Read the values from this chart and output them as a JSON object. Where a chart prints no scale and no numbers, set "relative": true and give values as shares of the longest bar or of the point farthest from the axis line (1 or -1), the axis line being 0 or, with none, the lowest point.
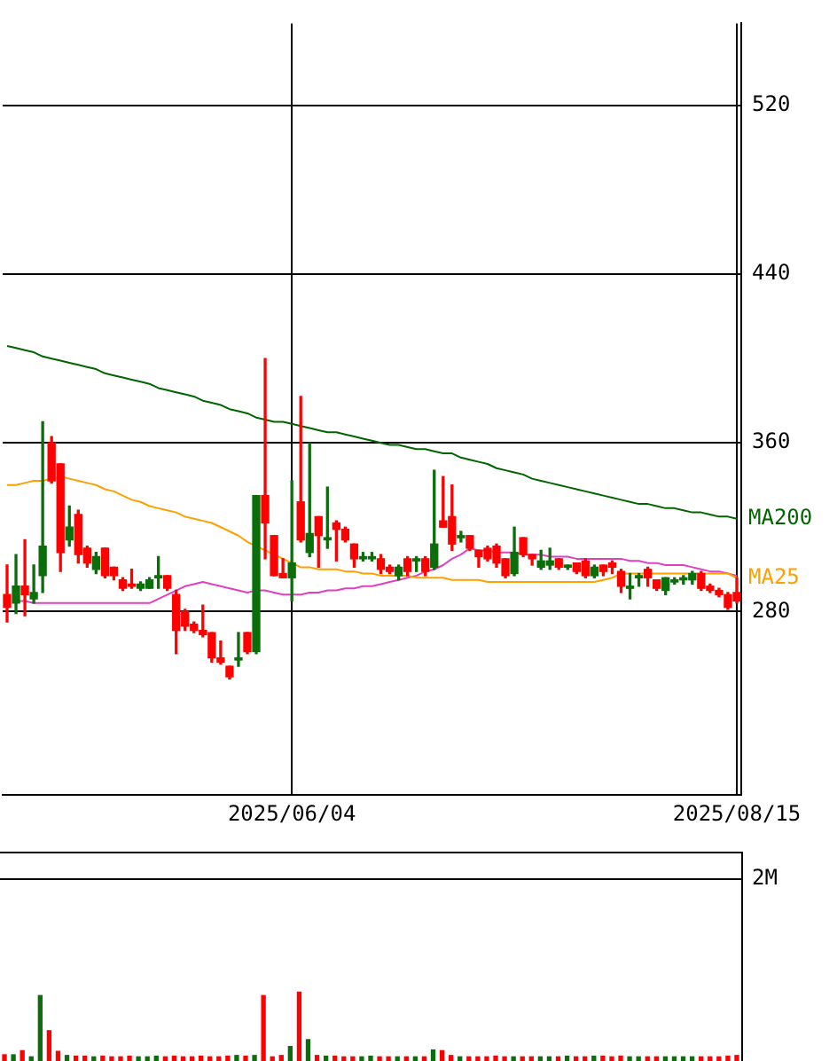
{
  "chart_data": [
    {
      "type": "candlestick",
      "categories": [
        null,
        null,
        null,
        null,
        null,
        null,
        null,
        null,
        null,
        null,
        null,
        null,
        null,
        null,
        null,
        null,
        null,
        null,
        null,
        null,
        null,
        null,
        null,
        null,
        null,
        null,
        null,
        null,
        null,
        null,
        null,
        null,
        "2025/06/04",
        null,
        null,
        null,
        null,
        null,
        null,
        null,
        null,
        null,
        null,
        null,
        null,
        null,
        null,
        null,
        null,
        null,
        null,
        null,
        null,
        null,
        null,
        null,
        null,
        null,
        null,
        null,
        null,
        null,
        null,
        null,
        null,
        null,
        null,
        null,
        null,
        null,
        null,
        null,
        null,
        null,
        null,
        null,
        null,
        null,
        null,
        null,
        null,
        null,
        "2025/08/15"
      ],
      "ohlc": [
        [
          288,
          302,
          275,
          282
        ],
        [
          284,
          307,
          279,
          292
        ],
        [
          292,
          314,
          278,
          288
        ],
        [
          286,
          302,
          284,
          289
        ],
        [
          297,
          370,
          289,
          311
        ],
        [
          360,
          363,
          341,
          342
        ],
        [
          350,
          350,
          299,
          308
        ],
        [
          314,
          330,
          311,
          320
        ],
        [
          326,
          328,
          303,
          307
        ],
        [
          310,
          311,
          301,
          303
        ],
        [
          300,
          308,
          298,
          306
        ],
        [
          310,
          310,
          296,
          297
        ],
        [
          301,
          301,
          295,
          297
        ],
        [
          295,
          296,
          290,
          291
        ],
        [
          293,
          300,
          291,
          292
        ],
        [
          291,
          294,
          290,
          293
        ],
        [
          291,
          296,
          291,
          295
        ],
        [
          296,
          306,
          291,
          297
        ],
        [
          297,
          297,
          290,
          291
        ],
        [
          288,
          290,
          260,
          271
        ],
        [
          280,
          281,
          271,
          273
        ],
        [
          274,
          275,
          270,
          271
        ],
        [
          271,
          283,
          268,
          269
        ],
        [
          270,
          270,
          256,
          258
        ],
        [
          258,
          266,
          255,
          256
        ],
        [
          254,
          254,
          248,
          249
        ],
        [
          257,
          270,
          254,
          258
        ],
        [
          270,
          270,
          260,
          261
        ],
        [
          261,
          335,
          260,
          335
        ],
        [
          335,
          400,
          305,
          322
        ],
        [
          316,
          316,
          297,
          297
        ],
        [
          298,
          305,
          296,
          296
        ],
        [
          296,
          342,
          285,
          303
        ],
        [
          332,
          382,
          313,
          314
        ],
        [
          308,
          360,
          306,
          317
        ],
        [
          325,
          325,
          301,
          316
        ],
        [
          314,
          339,
          310,
          315
        ],
        [
          322,
          323,
          304,
          319
        ],
        [
          319,
          320,
          313,
          314
        ],
        [
          312,
          312,
          301,
          305
        ],
        [
          305,
          308,
          304,
          306
        ],
        [
          305,
          308,
          304,
          306
        ],
        [
          305,
          307,
          298,
          300
        ],
        [
          301,
          302,
          298,
          299
        ],
        [
          297,
          302,
          295,
          301
        ],
        [
          305,
          306,
          297,
          299
        ],
        [
          304,
          306,
          299,
          305
        ],
        [
          305,
          306,
          297,
          299
        ],
        [
          301,
          347,
          300,
          312
        ],
        [
          323,
          344,
          320,
          320
        ],
        [
          325,
          340,
          309,
          312
        ],
        [
          315,
          318,
          313,
          316
        ],
        [
          316,
          316,
          309,
          310
        ],
        [
          309,
          309,
          301,
          306
        ],
        [
          310,
          311,
          304,
          305
        ],
        [
          311,
          312,
          301,
          303
        ],
        [
          305,
          305,
          296,
          297
        ],
        [
          298,
          320,
          297,
          308
        ],
        [
          315,
          315,
          306,
          307
        ],
        [
          307,
          307,
          302,
          305
        ],
        [
          301,
          309,
          300,
          304
        ],
        [
          302,
          310,
          300,
          304
        ],
        [
          305,
          305,
          300,
          301
        ],
        [
          301,
          302,
          300,
          302
        ],
        [
          303,
          303,
          298,
          299
        ],
        [
          304,
          305,
          296,
          297
        ],
        [
          297,
          302,
          296,
          301
        ],
        [
          302,
          302,
          297,
          299
        ],
        [
          303,
          304,
          298,
          301
        ],
        [
          299,
          300,
          289,
          292
        ],
        [
          291,
          298,
          286,
          292
        ],
        [
          296,
          298,
          292,
          297
        ],
        [
          300,
          301,
          292,
          296
        ],
        [
          295,
          295,
          290,
          291
        ],
        [
          290,
          296,
          288,
          296
        ],
        [
          294,
          296,
          293,
          295
        ],
        [
          295,
          297,
          293,
          296
        ],
        [
          295,
          299,
          293,
          298
        ],
        [
          298,
          299,
          290,
          291
        ],
        [
          292,
          293,
          289,
          290
        ],
        [
          290,
          291,
          287,
          288
        ],
        [
          288,
          289,
          281,
          282
        ],
        [
          289,
          296,
          284,
          285
        ]
      ],
      "colors": [
        "#ff0000",
        "#0a6e0a",
        "#ff0000",
        "#0a6e0a",
        "#0a6e0a",
        "#ff0000",
        "#ff0000",
        "#0a6e0a",
        "#ff0000",
        "#ff0000",
        "#0a6e0a",
        "#ff0000",
        "#ff0000",
        "#ff0000",
        "#ff0000",
        "#0a6e0a",
        "#0a6e0a",
        "#0a6e0a",
        "#ff0000",
        "#ff0000",
        "#ff0000",
        "#ff0000",
        "#ff0000",
        "#ff0000",
        "#ff0000",
        "#ff0000",
        "#0a6e0a",
        "#ff0000",
        "#0a6e0a",
        "#ff0000",
        "#ff0000",
        "#ff0000",
        "#0a6e0a",
        "#ff0000",
        "#0a6e0a",
        "#ff0000",
        "#0a6e0a",
        "#ff0000",
        "#ff0000",
        "#ff0000",
        "#0a6e0a",
        "#0a6e0a",
        "#ff0000",
        "#ff0000",
        "#0a6e0a",
        "#ff0000",
        "#0a6e0a",
        "#ff0000",
        "#0a6e0a",
        "#ff0000",
        "#ff0000",
        "#0a6e0a",
        "#ff0000",
        "#ff0000",
        "#ff0000",
        "#ff0000",
        "#ff0000",
        "#0a6e0a",
        "#ff0000",
        "#ff0000",
        "#0a6e0a",
        "#0a6e0a",
        "#ff0000",
        "#0a6e0a",
        "#ff0000",
        "#ff0000",
        "#0a6e0a",
        "#ff0000",
        "#ff0000",
        "#ff0000",
        "#0a6e0a",
        "#0a6e0a",
        "#ff0000",
        "#ff0000",
        "#0a6e0a",
        "#0a6e0a",
        "#0a6e0a",
        "#0a6e0a",
        "#ff0000",
        "#ff0000",
        "#ff0000",
        "#ff0000",
        "#ff0000"
      ],
      "series": [
        {
          "type": "line",
          "name": "MA200",
          "color": "#006400",
          "values": [
            406,
            405,
            404,
            403,
            401,
            400,
            399,
            398,
            397,
            396,
            395,
            393,
            392,
            391,
            390,
            389,
            388,
            386,
            385,
            384,
            383,
            382,
            380,
            379,
            378,
            376,
            375,
            374,
            372,
            371,
            370,
            370,
            369,
            368,
            367,
            366,
            365,
            365,
            364,
            363,
            362,
            361,
            360,
            359,
            359,
            358,
            357,
            357,
            356,
            355,
            355,
            353,
            352,
            351,
            350,
            348,
            347,
            346,
            345,
            343,
            342,
            341,
            340,
            339,
            338,
            337,
            336,
            335,
            334,
            333,
            332,
            331,
            331,
            330,
            329,
            329,
            328,
            327,
            327,
            326,
            325,
            325,
            324
          ]
        },
        {
          "type": "line",
          "name": "MA25",
          "color": "#ffa000",
          "values": [
            340,
            340,
            341,
            342,
            342,
            343,
            344,
            343,
            342,
            341,
            340,
            338,
            337,
            335,
            333,
            332,
            330,
            329,
            328,
            327,
            325,
            324,
            323,
            322,
            320,
            318,
            316,
            313,
            311,
            309,
            307,
            305,
            303,
            301,
            301,
            300,
            300,
            300,
            299,
            299,
            298,
            298,
            297,
            297,
            297,
            297,
            296,
            296,
            296,
            296,
            295,
            295,
            295,
            295,
            294,
            294,
            294,
            294,
            294,
            294,
            294,
            294,
            294,
            294,
            294,
            294,
            294,
            295,
            296,
            298,
            298,
            298,
            298,
            298,
            298,
            298,
            298,
            298,
            298,
            298,
            298,
            298,
            296
          ]
        },
        {
          "type": "line",
          "color": "#e040c0",
          "values": [
            null,
            285,
            285,
            284,
            284,
            284,
            284,
            284,
            284,
            284,
            284,
            284,
            284,
            284,
            284,
            284,
            284,
            286,
            288,
            290,
            292,
            293,
            294,
            293,
            292,
            291,
            290,
            289,
            290,
            290,
            289,
            288,
            288,
            288,
            289,
            289,
            290,
            290,
            291,
            291,
            292,
            292,
            293,
            294,
            295,
            296,
            297,
            299,
            300,
            302,
            305,
            307,
            310,
            309,
            309,
            308,
            308,
            308,
            307,
            307,
            307,
            306,
            306,
            306,
            305,
            305,
            305,
            305,
            305,
            305,
            304,
            304,
            303,
            303,
            302,
            302,
            302,
            301,
            300,
            299,
            299,
            298,
            297
          ]
        }
      ],
      "ylim": [
        193,
        559
      ],
      "yticks": [
        280,
        360,
        440,
        520
      ],
      "grid": true
    },
    {
      "type": "bar",
      "relative": true,
      "categories": [
        null,
        null,
        null,
        null,
        null,
        null,
        null,
        null,
        null,
        null,
        null,
        null,
        null,
        null,
        null,
        null,
        null,
        null,
        null,
        null,
        null,
        null,
        null,
        null,
        null,
        null,
        null,
        null,
        null,
        null,
        null,
        null,
        null,
        null,
        null,
        null,
        null,
        null,
        null,
        null,
        null,
        null,
        null,
        null,
        null,
        null,
        null,
        null,
        null,
        null,
        null,
        null,
        null,
        null,
        null,
        null,
        null,
        null,
        null,
        null,
        null,
        null,
        null,
        null,
        null,
        null,
        null,
        null,
        null,
        null,
        null,
        null,
        null,
        null,
        null,
        null,
        null,
        null,
        null,
        null,
        null,
        null,
        null
      ],
      "values": [
        0.09,
        0.09,
        0.15,
        0.06,
        0.95,
        0.44,
        0.14,
        0.08,
        0.07,
        0.07,
        0.06,
        0.07,
        0.06,
        0.06,
        0.07,
        0.06,
        0.06,
        0.07,
        0.06,
        0.07,
        0.06,
        0.06,
        0.07,
        0.06,
        0.06,
        0.07,
        0.08,
        0.07,
        0.08,
        0.95,
        0.06,
        0.08,
        0.21,
        1,
        0.31,
        0.08,
        0.07,
        0.07,
        0.06,
        0.06,
        0.06,
        0.07,
        0.06,
        0.06,
        0.06,
        0.06,
        0.06,
        0.06,
        0.16,
        0.15,
        0.08,
        0.06,
        0.06,
        0.06,
        0.06,
        0.07,
        0.06,
        0.06,
        0.06,
        0.06,
        0.06,
        0.06,
        0.06,
        0.07,
        0.06,
        0.06,
        0.07,
        0.07,
        0.06,
        0.07,
        0.06,
        0.06,
        0.06,
        0.06,
        0.06,
        0.06,
        0.06,
        0.06,
        0.06,
        0.06,
        0.06,
        0.07,
        0.08
      ],
      "colors": [
        "#ff0000",
        "#0a6e0a",
        "#ff0000",
        "#0a6e0a",
        "#0a6e0a",
        "#ff0000",
        "#ff0000",
        "#0a6e0a",
        "#ff0000",
        "#ff0000",
        "#0a6e0a",
        "#ff0000",
        "#ff0000",
        "#ff0000",
        "#ff0000",
        "#0a6e0a",
        "#0a6e0a",
        "#0a6e0a",
        "#ff0000",
        "#ff0000",
        "#ff0000",
        "#ff0000",
        "#ff0000",
        "#ff0000",
        "#ff0000",
        "#ff0000",
        "#0a6e0a",
        "#ff0000",
        "#0a6e0a",
        "#ff0000",
        "#ff0000",
        "#ff0000",
        "#0a6e0a",
        "#ff0000",
        "#0a6e0a",
        "#ff0000",
        "#0a6e0a",
        "#ff0000",
        "#ff0000",
        "#ff0000",
        "#0a6e0a",
        "#0a6e0a",
        "#ff0000",
        "#ff0000",
        "#0a6e0a",
        "#ff0000",
        "#0a6e0a",
        "#ff0000",
        "#0a6e0a",
        "#ff0000",
        "#ff0000",
        "#0a6e0a",
        "#ff0000",
        "#ff0000",
        "#ff0000",
        "#ff0000",
        "#ff0000",
        "#0a6e0a",
        "#ff0000",
        "#ff0000",
        "#0a6e0a",
        "#0a6e0a",
        "#ff0000",
        "#0a6e0a",
        "#ff0000",
        "#ff0000",
        "#0a6e0a",
        "#ff0000",
        "#ff0000",
        "#ff0000",
        "#0a6e0a",
        "#0a6e0a",
        "#ff0000",
        "#ff0000",
        "#0a6e0a",
        "#0a6e0a",
        "#0a6e0a",
        "#0a6e0a",
        "#ff0000",
        "#ff0000",
        "#ff0000",
        "#ff0000",
        "#ff0000"
      ],
      "annotations": [
        "2M"
      ]
    }
  ]
}
